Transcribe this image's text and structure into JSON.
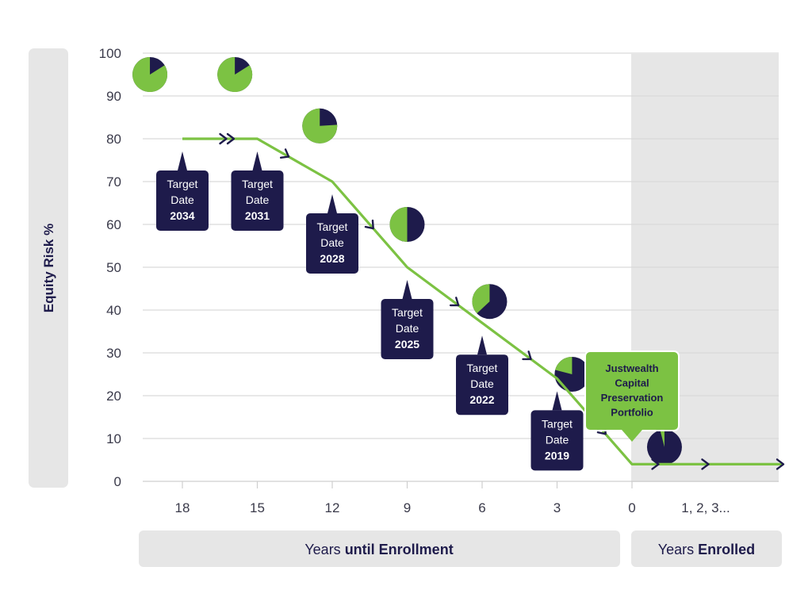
{
  "chart_data": {
    "type": "line",
    "ylabel": "Equity Risk %",
    "xlabel_enrollment": {
      "prefix": "Years ",
      "bold": "until Enrollment"
    },
    "xlabel_enrolled": {
      "prefix": "Years ",
      "bold": "Enrolled"
    },
    "ylim": [
      0,
      100
    ],
    "y_ticks": [
      "0",
      "10",
      "20",
      "30",
      "40",
      "50",
      "60",
      "70",
      "80",
      "90",
      "100"
    ],
    "x_ticks": [
      {
        "x": 18,
        "label": "18"
      },
      {
        "x": 15,
        "label": "15"
      },
      {
        "x": 12,
        "label": "12"
      },
      {
        "x": 9,
        "label": "9"
      },
      {
        "x": 6,
        "label": "6"
      },
      {
        "x": 3,
        "label": "3"
      },
      {
        "x": 0,
        "label": "0"
      }
    ],
    "enrolled_tick_label": "1, 2, 3...",
    "series": [
      {
        "points": [
          {
            "x": 18,
            "y": 80
          },
          {
            "x": 15,
            "y": 80
          },
          {
            "x": 12,
            "y": 70
          },
          {
            "x": 9,
            "y": 50
          },
          {
            "x": 6,
            "y": 37
          },
          {
            "x": 3,
            "y": 24
          },
          {
            "x": 0,
            "y": 4
          },
          {
            "x": -6,
            "y": 4
          }
        ]
      }
    ],
    "arrows_x": [
      16.3,
      16.0,
      13.8,
      10.4,
      7.0,
      4.1,
      1.1,
      -1.0,
      -3.0,
      -6.0
    ],
    "pies": [
      {
        "x": 19.3,
        "y": 95,
        "equity_pct": 84
      },
      {
        "x": 15.9,
        "y": 95,
        "equity_pct": 84
      },
      {
        "x": 12.5,
        "y": 83,
        "equity_pct": 76
      },
      {
        "x": 9.0,
        "y": 60,
        "equity_pct": 50
      },
      {
        "x": 5.7,
        "y": 42,
        "equity_pct": 37
      },
      {
        "x": 2.4,
        "y": 25,
        "equity_pct": 21
      },
      {
        "x": -1.3,
        "y": 8,
        "equity_pct": 4
      }
    ],
    "callouts": [
      {
        "x": 18,
        "year": "2034",
        "line1": "Target",
        "line2": "Date"
      },
      {
        "x": 15,
        "year": "2031",
        "line1": "Target",
        "line2": "Date"
      },
      {
        "x": 12,
        "year": "2028",
        "line1": "Target",
        "line2": "Date"
      },
      {
        "x": 9,
        "year": "2025",
        "line1": "Target",
        "line2": "Date"
      },
      {
        "x": 6,
        "year": "2022",
        "line1": "Target",
        "line2": "Date"
      },
      {
        "x": 3,
        "year": "2019",
        "line1": "Target",
        "line2": "Date"
      }
    ],
    "portfolio_callout": {
      "lines": [
        "Justwealth",
        "Capital",
        "Preservation",
        "Portfolio"
      ]
    },
    "colors": {
      "line": "#7cc243",
      "navy": "#1e1b4b",
      "pie_equity": "#7cc243",
      "pie_other": "#1e1b4b",
      "grid": "#d9d9d9",
      "panel": "#e6e6e6"
    }
  }
}
